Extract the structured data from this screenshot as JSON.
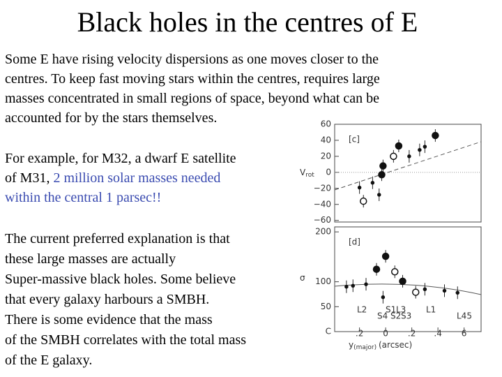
{
  "title": "Black holes in the centres of E",
  "paragraphs": [
    {
      "lines": [
        [
          "Some E have rising velocity dispersions as one moves closer to the"
        ],
        [
          "centres. To keep fast moving stars within the centres, requires large"
        ],
        [
          "masses concentrated in small regions of space, beyond what can be"
        ],
        [
          "accounted for by the stars themselves."
        ]
      ]
    },
    {
      "lines": [
        [
          "For example, for M32, a dwarf E satellite"
        ],
        [
          "of M31, ",
          "2 million solar masses needed"
        ],
        [
          "within the central 1 parsec!!"
        ]
      ]
    },
    {
      "lines": [
        [
          "The current preferred explanation is that"
        ],
        [
          "these large masses are actually"
        ],
        [
          "Super-massive black holes. Some believe"
        ],
        [
          "that every galaxy harbours a SMBH."
        ],
        [
          "There is some evidence that the mass"
        ],
        [
          "of the SMBH correlates with the total mass"
        ],
        [
          "of the E galaxy."
        ]
      ]
    }
  ],
  "highlight_color": "#3a4bb0",
  "figure": {
    "xlim": [
      -0.39,
      0.73
    ],
    "xticks": [
      {
        "value": -0.2,
        "label": ".2"
      },
      0,
      {
        "value": 0.2,
        "label": ".2"
      },
      {
        "value": 0.4,
        "label": ".4"
      },
      {
        "value": 0.6,
        "label": "6"
      }
    ],
    "x_label": {
      "symbol": "y",
      "subscript": "(major)",
      "unit": "(arcsec)"
    },
    "panels": [
      {
        "tag": "[c]",
        "y_label": {
          "symbol": "V",
          "subscript": "rot"
        },
        "ylim": [
          -62,
          60
        ],
        "yticks": [
          60,
          40,
          20,
          0,
          {
            "value": -20,
            "label": "−20"
          },
          {
            "value": -40,
            "label": "−40"
          },
          {
            "value": -60,
            "label": "−60"
          }
        ],
        "series": [
          {
            "style": "filled",
            "x": [
              0.38,
              0.1,
              -0.02,
              -0.03
            ],
            "y": [
              46,
              33,
              8,
              -3
            ]
          },
          {
            "style": "open",
            "x": [
              -0.17,
              0.06
            ],
            "y": [
              -36,
              20
            ]
          },
          {
            "style": "small",
            "x": [
              0.26,
              -0.1,
              -0.2,
              -0.05,
              0.18,
              0.3
            ],
            "y": [
              28,
              -13,
              -19,
              -28,
              20,
              32
            ]
          }
        ]
      },
      {
        "tag": "[d]",
        "y_label": {
          "symbol": "σ"
        },
        "ylim": [
          0,
          210
        ],
        "yticks": [
          200,
          100,
          50,
          {
            "value": 0,
            "label": "C"
          }
        ],
        "series": [
          {
            "style": "filled",
            "x": [
              -0.07,
              0,
              0.13
            ],
            "y": [
              125,
              151,
              101
            ]
          },
          {
            "style": "open",
            "x": [
              0.07,
              0.23
            ],
            "y": [
              120,
              79
            ]
          },
          {
            "style": "small",
            "x": [
              -0.3,
              -0.25,
              -0.15,
              -0.02,
              0.3,
              0.45,
              0.55
            ],
            "y": [
              90,
              92,
              95,
              69,
              85,
              82,
              78
            ]
          }
        ],
        "notes": [
          "L2",
          "S1",
          "L3",
          "L1",
          "S4",
          "S2",
          "S3",
          "L45"
        ]
      }
    ]
  }
}
